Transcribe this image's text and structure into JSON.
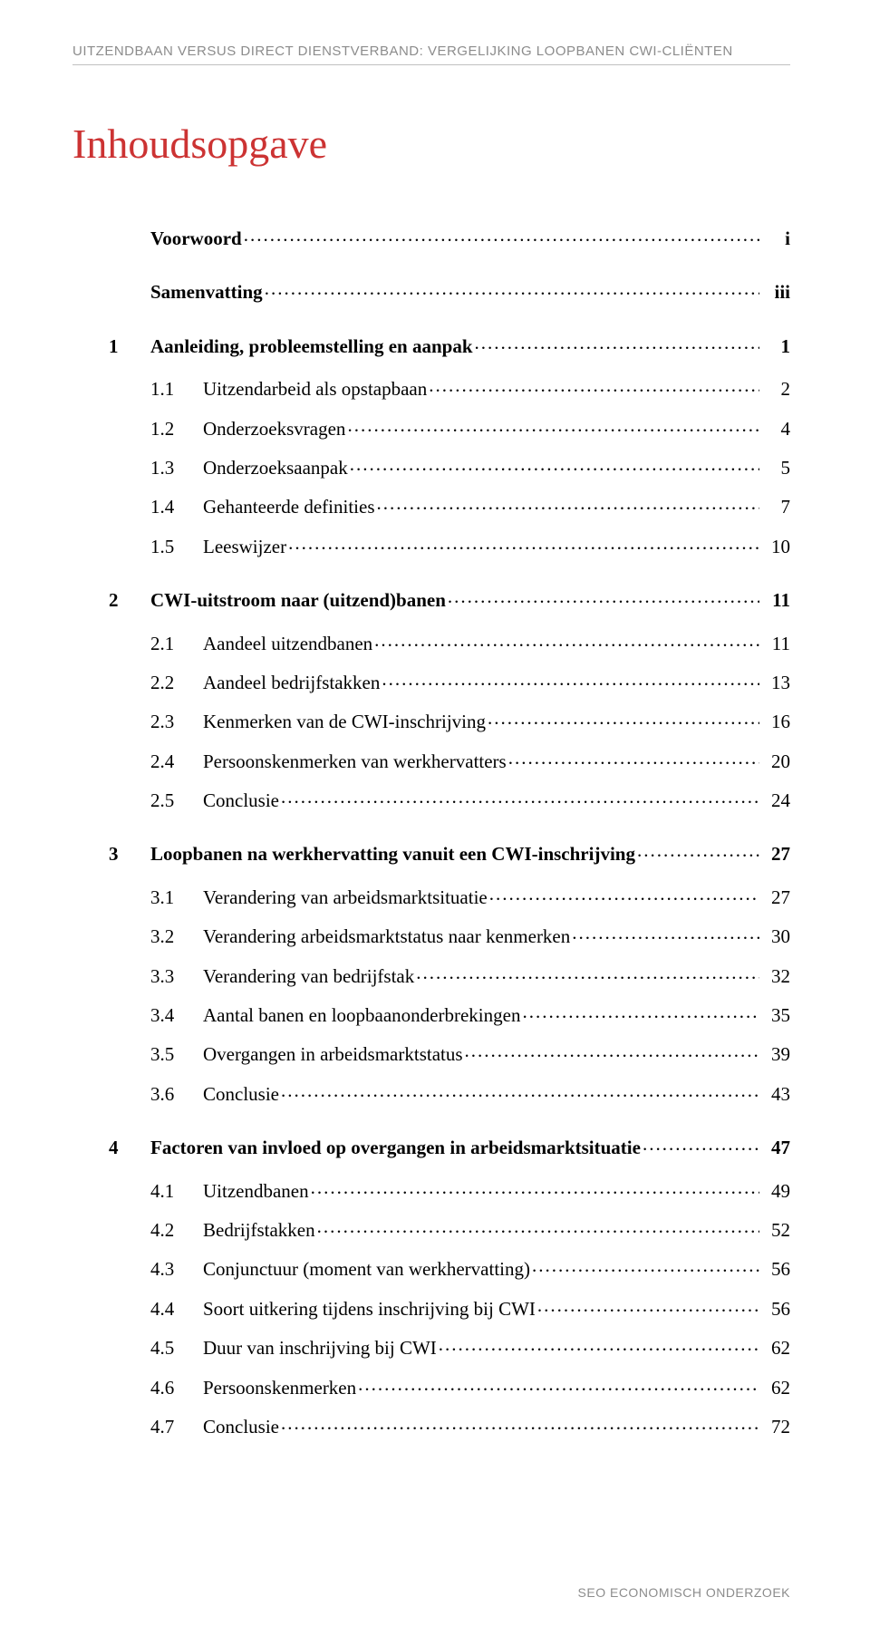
{
  "header": "UITZENDBAAN VERSUS DIRECT DIENSTVERBAND: VERGELIJKING LOOPBANEN CWI-CLIËNTEN",
  "title": "Inhoudsopgave",
  "footer": "SEO ECONOMISCH ONDERZOEK",
  "colors": {
    "title": "#cc3333",
    "header_text": "#8c8c8c",
    "body_text": "#000000",
    "rule": "#c0c0c0",
    "background": "#ffffff"
  },
  "toc": [
    {
      "type": "top",
      "num": "",
      "label": "Voorwoord",
      "page": "i",
      "bold": true
    },
    {
      "type": "top",
      "num": "",
      "label": "Samenvatting",
      "page": "iii",
      "bold": true,
      "gap": true
    },
    {
      "type": "top",
      "num": "1",
      "label": "Aanleiding, probleemstelling en aanpak",
      "page": "1",
      "bold": true,
      "gap": true
    },
    {
      "type": "sub",
      "num": "1.1",
      "label": "Uitzendarbeid als opstapbaan",
      "page": "2"
    },
    {
      "type": "sub",
      "num": "1.2",
      "label": "Onderzoeksvragen",
      "page": "4"
    },
    {
      "type": "sub",
      "num": "1.3",
      "label": "Onderzoeksaanpak",
      "page": "5"
    },
    {
      "type": "sub",
      "num": "1.4",
      "label": "Gehanteerde definities",
      "page": "7"
    },
    {
      "type": "sub",
      "num": "1.5",
      "label": "Leeswijzer",
      "page": "10"
    },
    {
      "type": "top",
      "num": "2",
      "label": "CWI-uitstroom naar (uitzend)banen",
      "page": "11",
      "bold": true,
      "gap": true
    },
    {
      "type": "sub",
      "num": "2.1",
      "label": "Aandeel uitzendbanen",
      "page": "11"
    },
    {
      "type": "sub",
      "num": "2.2",
      "label": "Aandeel bedrijfstakken",
      "page": "13"
    },
    {
      "type": "sub",
      "num": "2.3",
      "label": "Kenmerken van de CWI-inschrijving",
      "page": "16"
    },
    {
      "type": "sub",
      "num": "2.4",
      "label": "Persoonskenmerken van werkhervatters",
      "page": "20"
    },
    {
      "type": "sub",
      "num": "2.5",
      "label": "Conclusie",
      "page": "24"
    },
    {
      "type": "top",
      "num": "3",
      "label": "Loopbanen na werkhervatting vanuit een CWI-inschrijving",
      "page": "27",
      "bold": true,
      "gap": true
    },
    {
      "type": "sub",
      "num": "3.1",
      "label": "Verandering van arbeidsmarktsituatie",
      "page": "27"
    },
    {
      "type": "sub",
      "num": "3.2",
      "label": "Verandering arbeidsmarktstatus naar kenmerken",
      "page": "30"
    },
    {
      "type": "sub",
      "num": "3.3",
      "label": "Verandering van bedrijfstak",
      "page": "32"
    },
    {
      "type": "sub",
      "num": "3.4",
      "label": "Aantal banen en loopbaanonderbrekingen",
      "page": "35"
    },
    {
      "type": "sub",
      "num": "3.5",
      "label": "Overgangen in arbeidsmarktstatus",
      "page": "39"
    },
    {
      "type": "sub",
      "num": "3.6",
      "label": "Conclusie",
      "page": "43"
    },
    {
      "type": "top",
      "num": "4",
      "label": "Factoren van invloed op overgangen in arbeidsmarktsituatie",
      "page": "47",
      "bold": true,
      "gap": true
    },
    {
      "type": "sub",
      "num": "4.1",
      "label": "Uitzendbanen",
      "page": "49"
    },
    {
      "type": "sub",
      "num": "4.2",
      "label": "Bedrijfstakken",
      "page": "52"
    },
    {
      "type": "sub",
      "num": "4.3",
      "label": "Conjunctuur (moment van werkhervatting)",
      "page": "56"
    },
    {
      "type": "sub",
      "num": "4.4",
      "label": "Soort uitkering tijdens inschrijving bij CWI",
      "page": "56"
    },
    {
      "type": "sub",
      "num": "4.5",
      "label": "Duur van inschrijving bij CWI",
      "page": "62"
    },
    {
      "type": "sub",
      "num": "4.6",
      "label": "Persoonskenmerken",
      "page": "62"
    },
    {
      "type": "sub",
      "num": "4.7",
      "label": "Conclusie",
      "page": "72"
    }
  ]
}
